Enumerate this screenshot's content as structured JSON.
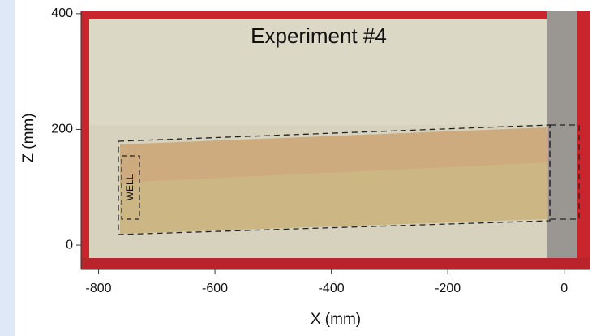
{
  "chart_data": {
    "type": "image",
    "title": "Experiment #4",
    "xlabel": "X (mm)",
    "ylabel": "Z (mm)",
    "annotations": [
      "WELL"
    ],
    "xlim": [
      -830,
      45
    ],
    "xticks": [
      -800,
      -600,
      -400,
      -200,
      0
    ],
    "ylim": [
      -42,
      404
    ],
    "yticks": [
      0,
      200,
      400
    ]
  }
}
